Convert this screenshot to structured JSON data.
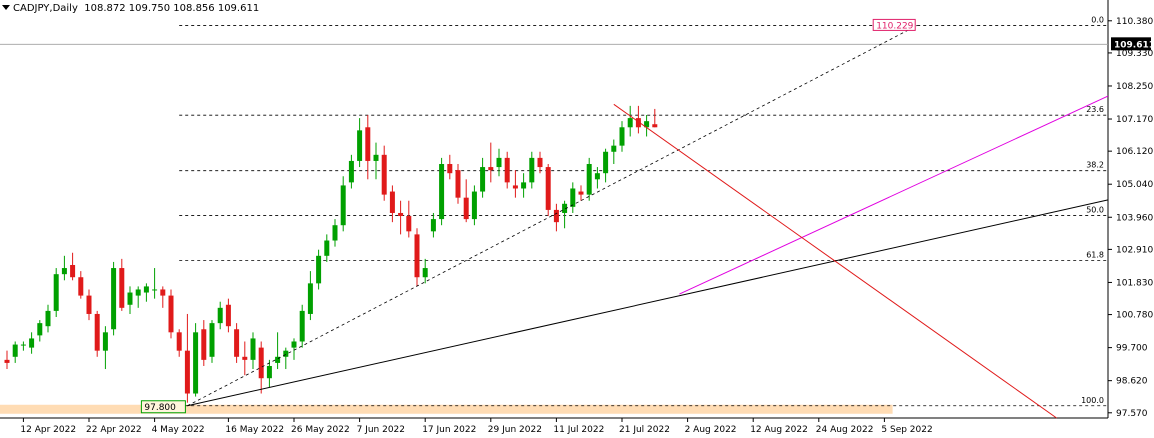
{
  "header": {
    "symbol": "CADJPY,Daily",
    "ohlc": "108.872 109.750 108.856 109.611"
  },
  "colors": {
    "bull": "#00a000",
    "bear": "#e01a1a",
    "grid": "#000000",
    "axis_bg": "#ffffff",
    "downtrend": "#e01a1a",
    "channel": "#e000e0",
    "support": "#000000",
    "fib": "#000000",
    "high_marker": "#e0206a",
    "low_marker_bg": "#fff5dc",
    "low_marker_border": "#00a000",
    "band": "#ffdcb4"
  },
  "chart_data": {
    "type": "candlestick",
    "ylim": [
      97.4,
      110.7
    ],
    "current_price": 109.611,
    "y_ticks": [
      110.38,
      109.33,
      108.25,
      107.17,
      106.12,
      105.04,
      103.96,
      102.91,
      101.83,
      100.78,
      99.7,
      98.62,
      97.57
    ],
    "y_tick_labels": [
      "110.380",
      "109.330",
      "108.250",
      "107.170",
      "106.120",
      "105.040",
      "103.960",
      "102.910",
      "101.830",
      "100.780",
      "99.700",
      "98.620",
      "97.570"
    ],
    "x_labels": [
      {
        "bar": 2,
        "label": "12 Apr 2022"
      },
      {
        "bar": 10,
        "label": "22 Apr 2022"
      },
      {
        "bar": 18,
        "label": "4 May 2022"
      },
      {
        "bar": 27,
        "label": "16 May 2022"
      },
      {
        "bar": 35,
        "label": "26 May 2022"
      },
      {
        "bar": 43,
        "label": "7 Jun 2022"
      },
      {
        "bar": 51,
        "label": "17 Jun 2022"
      },
      {
        "bar": 59,
        "label": "29 Jun 2022"
      },
      {
        "bar": 67,
        "label": "11 Jul 2022"
      },
      {
        "bar": 75,
        "label": "21 Jul 2022"
      },
      {
        "bar": 83,
        "label": "2 Aug 2022"
      },
      {
        "bar": 91,
        "label": "12 Aug 2022"
      },
      {
        "bar": 99,
        "label": "24 Aug 2022"
      },
      {
        "bar": 107,
        "label": "5 Sep 2022"
      }
    ],
    "fibonacci": {
      "high": 110.229,
      "low": 97.8,
      "levels": [
        {
          "label": "0.0",
          "value": 110.229
        },
        {
          "label": "23.6",
          "value": 107.296
        },
        {
          "label": "38.2",
          "value": 105.481
        },
        {
          "label": "50.0",
          "value": 104.015
        },
        {
          "label": "61.8",
          "value": 102.548
        },
        {
          "label": "100.0",
          "value": 97.8
        }
      ]
    },
    "markers": {
      "high_label": "110.229",
      "low_label": "97.800",
      "current_label": "109.611"
    },
    "trendlines": [
      {
        "name": "fib-diagonal",
        "from": {
          "bar": 22,
          "value": 97.8
        },
        "to": {
          "bar": 111,
          "value": 110.229
        }
      },
      {
        "name": "support",
        "from": {
          "bar": 22,
          "value": 97.8
        },
        "to": {
          "bar": 143,
          "value": 105.05
        }
      },
      {
        "name": "channel",
        "from": {
          "bar": 82,
          "value": 101.45
        },
        "to": {
          "bar": 143,
          "value": 109.0
        }
      },
      {
        "name": "downtrend",
        "from": {
          "bar": 74,
          "value": 107.65
        },
        "to": {
          "bar": 128,
          "value": 97.4
        }
      }
    ],
    "candles": [
      [
        99.3,
        99.6,
        99.0,
        99.2
      ],
      [
        99.4,
        99.9,
        99.2,
        99.8
      ],
      [
        99.8,
        99.9,
        99.6,
        99.8
      ],
      [
        99.7,
        100.2,
        99.5,
        100.0
      ],
      [
        100.1,
        100.6,
        99.9,
        100.5
      ],
      [
        100.4,
        101.1,
        100.2,
        100.9
      ],
      [
        100.9,
        102.3,
        100.7,
        102.1
      ],
      [
        102.1,
        102.7,
        101.9,
        102.3
      ],
      [
        102.4,
        102.8,
        101.9,
        102.0
      ],
      [
        102.0,
        102.2,
        101.3,
        101.4
      ],
      [
        101.4,
        101.6,
        100.6,
        100.8
      ],
      [
        100.8,
        100.9,
        99.4,
        99.6
      ],
      [
        99.6,
        100.4,
        99.0,
        100.2
      ],
      [
        100.3,
        102.5,
        100.1,
        102.3
      ],
      [
        102.3,
        102.6,
        100.9,
        101.0
      ],
      [
        101.1,
        101.7,
        100.8,
        101.5
      ],
      [
        101.4,
        101.7,
        101.0,
        101.6
      ],
      [
        101.5,
        101.8,
        101.2,
        101.7
      ],
      [
        101.6,
        102.3,
        101.3,
        101.6
      ],
      [
        101.6,
        101.7,
        101.0,
        101.4
      ],
      [
        101.4,
        101.6,
        100.0,
        100.2
      ],
      [
        100.2,
        100.3,
        99.4,
        99.6
      ],
      [
        99.6,
        100.8,
        97.9,
        98.2
      ],
      [
        98.2,
        100.5,
        98.1,
        100.2
      ],
      [
        100.3,
        100.6,
        99.1,
        99.3
      ],
      [
        99.4,
        100.6,
        99.2,
        100.5
      ],
      [
        100.5,
        101.2,
        100.3,
        101.0
      ],
      [
        101.1,
        101.3,
        100.2,
        100.4
      ],
      [
        100.3,
        100.5,
        99.2,
        99.4
      ],
      [
        99.4,
        99.9,
        98.8,
        99.3
      ],
      [
        99.3,
        100.2,
        99.0,
        100.0
      ],
      [
        99.7,
        99.9,
        98.2,
        98.7
      ],
      [
        98.7,
        99.3,
        98.4,
        99.1
      ],
      [
        99.2,
        100.2,
        99.0,
        99.4
      ],
      [
        99.4,
        99.7,
        99.0,
        99.6
      ],
      [
        99.7,
        100.0,
        99.3,
        99.9
      ],
      [
        99.9,
        101.1,
        99.7,
        100.9
      ],
      [
        100.8,
        102.2,
        100.6,
        101.8
      ],
      [
        101.8,
        102.9,
        101.6,
        102.7
      ],
      [
        102.7,
        103.4,
        102.5,
        103.2
      ],
      [
        103.2,
        103.9,
        103.0,
        103.7
      ],
      [
        103.7,
        105.3,
        103.5,
        105.0
      ],
      [
        105.1,
        106.0,
        104.9,
        105.8
      ],
      [
        105.8,
        107.2,
        105.6,
        106.8
      ],
      [
        106.9,
        107.3,
        105.2,
        105.8
      ],
      [
        105.8,
        106.4,
        105.2,
        106.0
      ],
      [
        106.0,
        106.3,
        104.5,
        104.7
      ],
      [
        104.8,
        105.0,
        103.8,
        104.1
      ],
      [
        104.1,
        104.5,
        103.4,
        104.0
      ],
      [
        104.0,
        104.5,
        103.3,
        103.5
      ],
      [
        103.4,
        103.6,
        101.7,
        102.0
      ],
      [
        102.0,
        102.6,
        101.8,
        102.3
      ],
      [
        103.5,
        104.1,
        103.3,
        103.9
      ],
      [
        103.9,
        105.9,
        103.7,
        105.7
      ],
      [
        105.7,
        106.0,
        105.2,
        105.4
      ],
      [
        105.5,
        105.7,
        104.4,
        104.6
      ],
      [
        104.6,
        105.2,
        103.8,
        103.9
      ],
      [
        103.9,
        105.0,
        103.7,
        104.8
      ],
      [
        104.8,
        105.9,
        104.6,
        105.6
      ],
      [
        105.6,
        106.4,
        105.1,
        105.5
      ],
      [
        105.6,
        106.2,
        105.3,
        105.9
      ],
      [
        105.9,
        106.1,
        104.9,
        105.1
      ],
      [
        105.0,
        105.5,
        104.6,
        104.9
      ],
      [
        104.9,
        105.4,
        104.6,
        105.1
      ],
      [
        105.1,
        106.1,
        104.9,
        105.9
      ],
      [
        105.9,
        106.1,
        105.4,
        105.6
      ],
      [
        105.6,
        105.7,
        104.0,
        104.2
      ],
      [
        104.2,
        104.4,
        103.5,
        103.8
      ],
      [
        104.1,
        104.5,
        103.6,
        104.4
      ],
      [
        104.3,
        105.1,
        104.1,
        104.9
      ],
      [
        104.8,
        105.0,
        104.5,
        104.7
      ],
      [
        104.7,
        105.9,
        104.5,
        105.7
      ],
      [
        105.2,
        105.6,
        104.9,
        105.4
      ],
      [
        105.4,
        106.2,
        105.1,
        106.1
      ],
      [
        106.1,
        106.5,
        105.7,
        106.3
      ],
      [
        106.3,
        107.1,
        106.1,
        106.9
      ],
      [
        106.9,
        107.6,
        106.6,
        107.2
      ],
      [
        107.2,
        107.6,
        106.7,
        106.9
      ],
      [
        106.9,
        107.3,
        106.6,
        107.1
      ],
      [
        107.0,
        107.5,
        106.9,
        106.9
      ]
    ]
  }
}
